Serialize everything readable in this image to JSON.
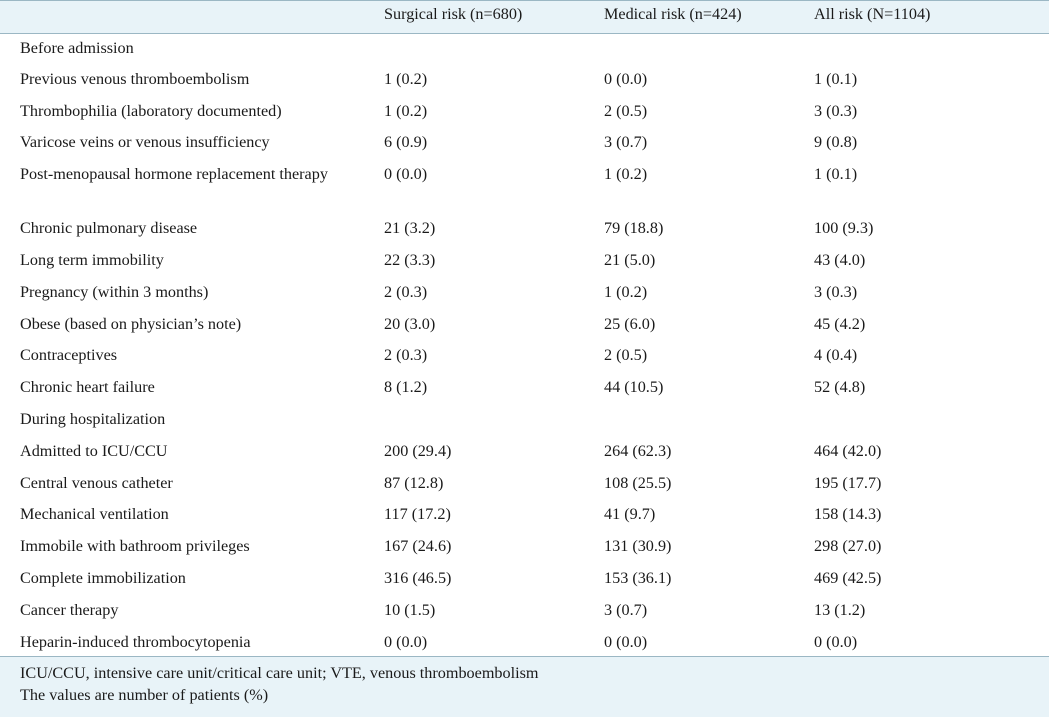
{
  "headers": [
    "",
    "Surgical risk (n=680)",
    "Medical risk (n=424)",
    "All risk (N=1104)"
  ],
  "rows": [
    [
      "Before admission",
      "",
      "",
      ""
    ],
    [
      "Previous venous thromboembolism",
      "1 (0.2)",
      "0 (0.0)",
      "1 (0.1)"
    ],
    [
      "Thrombophilia (laboratory documented)",
      "1 (0.2)",
      "2 (0.5)",
      "3 (0.3)"
    ],
    [
      "Varicose veins or venous insufficiency",
      "6 (0.9)",
      "3 (0.7)",
      "9 (0.8)"
    ],
    [
      "Post-menopausal hormone replacement therapy",
      "0 (0.0)",
      "1 (0.2)",
      "1 (0.1)"
    ],
    [
      "Chronic pulmonary disease",
      "21 (3.2)",
      "79 (18.8)",
      "100 (9.3)"
    ],
    [
      "Long term immobility",
      "22 (3.3)",
      "21 (5.0)",
      "43 (4.0)"
    ],
    [
      "Pregnancy (within 3 months)",
      "2 (0.3)",
      "1 (0.2)",
      "3 (0.3)"
    ],
    [
      "Obese (based on physician’s note)",
      "20 (3.0)",
      "25 (6.0)",
      "45 (4.2)"
    ],
    [
      "Contraceptives",
      "2 (0.3)",
      "2 (0.5)",
      "4 (0.4)"
    ],
    [
      "Chronic heart failure",
      "8 (1.2)",
      "44 (10.5)",
      "52 (4.8)"
    ],
    [
      "During hospitalization",
      "",
      "",
      ""
    ],
    [
      "Admitted to ICU/CCU",
      "200 (29.4)",
      "264 (62.3)",
      "464 (42.0)"
    ],
    [
      "Central venous catheter",
      "87 (12.8)",
      "108 (25.5)",
      "195 (17.7)"
    ],
    [
      "Mechanical ventilation",
      "117 (17.2)",
      "41 (9.7)",
      "158 (14.3)"
    ],
    [
      "Immobile with bathroom privileges",
      "167 (24.6)",
      "131 (30.9)",
      "298 (27.0)"
    ],
    [
      "Complete immobilization",
      "316 (46.5)",
      "153 (36.1)",
      "469 (42.5)"
    ],
    [
      "Cancer therapy",
      "10 (1.5)",
      "3 (0.7)",
      "13 (1.2)"
    ],
    [
      "Heparin-induced thrombocytopenia",
      "0 (0.0)",
      "0 (0.0)",
      "0 (0.0)"
    ]
  ],
  "footnotes": [
    "ICU/CCU, intensive care unit/critical care unit; VTE, venous thromboembolism",
    "The values are number of patients (%)"
  ]
}
